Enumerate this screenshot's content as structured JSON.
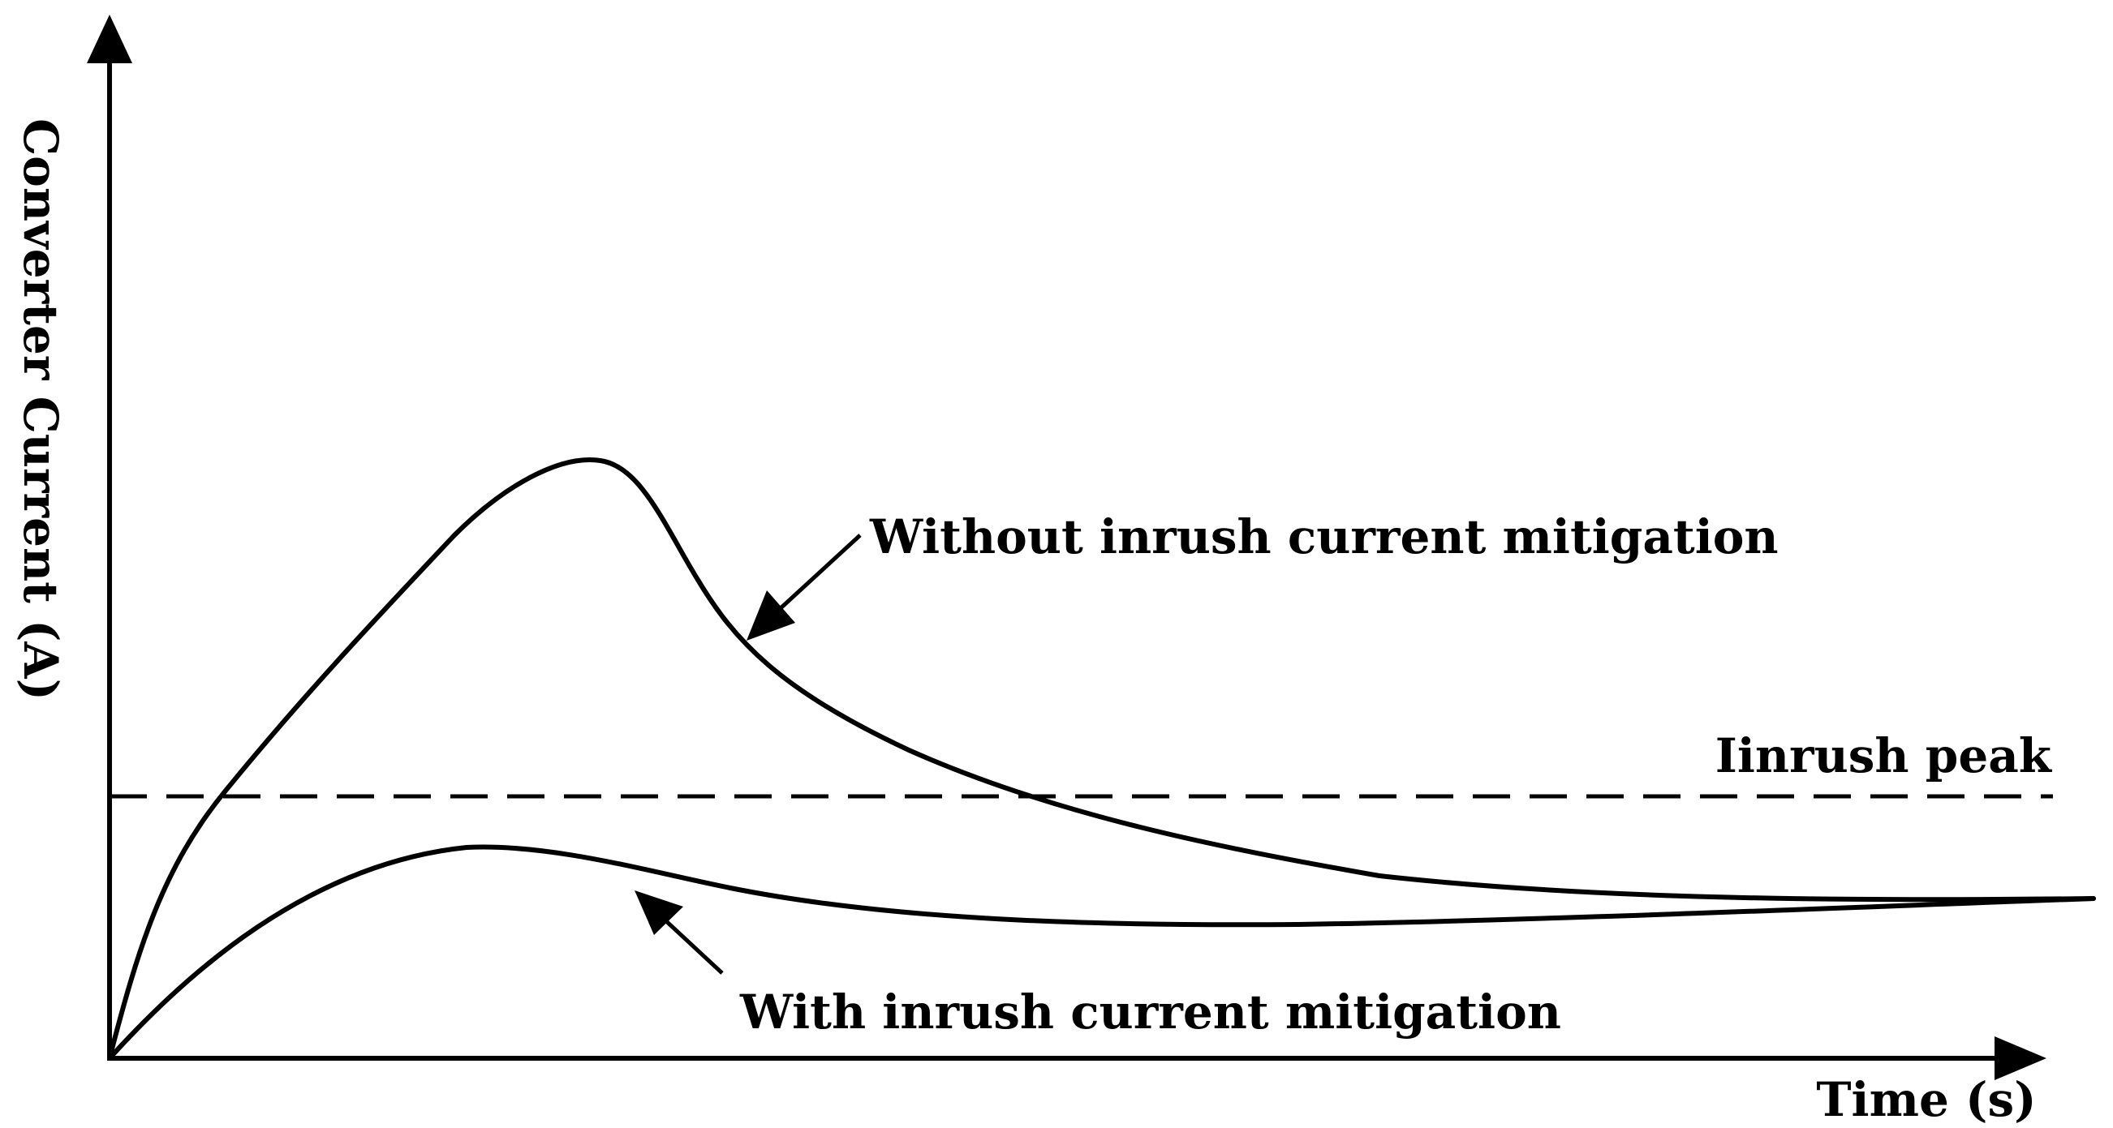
{
  "axes": {
    "x_title": "Time (s)",
    "y_title": "Converter Current (A)"
  },
  "annotations": {
    "without_mitigation": "Without inrush current mitigation",
    "with_mitigation": "With inrush current mitigation",
    "inrush_peak": "Iinrush peak"
  },
  "series": [
    {
      "label_ref": "annotations.without_mitigation",
      "shape": "rises steeply to a sharp peak, then decays and settles to a steady value"
    },
    {
      "label_ref": "annotations.with_mitigation",
      "shape": "rises to a small peak below the inrush limit, then settles to the same steady value"
    }
  ],
  "reference_line": {
    "label_ref": "annotations.inrush_peak",
    "style": "dashed"
  },
  "colors": {
    "ink": "#000000",
    "background": "#ffffff"
  }
}
